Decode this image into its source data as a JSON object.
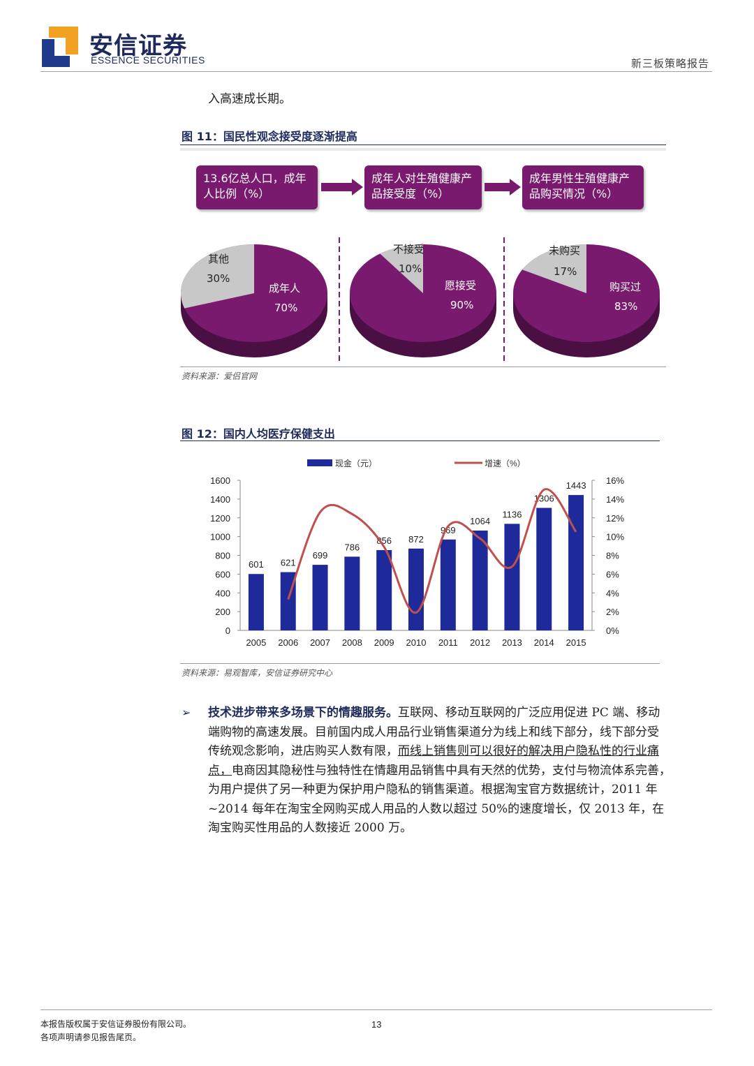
{
  "header": {
    "logo_cn": "安信证券",
    "logo_en": "ESSENCE SECURITIES",
    "report_type": "新三板策略报告"
  },
  "intro_text": "入高速成长期。",
  "figure11": {
    "title": "图 11：国民性观念接受度逐渐提高",
    "boxes": [
      "13.6亿总人口，成年人比例（%）",
      "成年人对生殖健康产品接受度（%）",
      "成年男性生殖健康产品购买情况（%）"
    ],
    "pies": [
      {
        "slices": [
          {
            "label": "成年人",
            "pct": "70%",
            "value": 70
          },
          {
            "label": "其他",
            "pct": "30%",
            "value": 30
          }
        ]
      },
      {
        "slices": [
          {
            "label": "愿接受",
            "pct": "90%",
            "value": 90
          },
          {
            "label": "不接受",
            "pct": "10%",
            "value": 10
          }
        ]
      },
      {
        "slices": [
          {
            "label": "购买过",
            "pct": "83%",
            "value": 83
          },
          {
            "label": "未购买",
            "pct": "17%",
            "value": 17
          }
        ]
      }
    ],
    "colors": {
      "main": "#7a1a6e",
      "other": "#c8c8c8"
    },
    "source": "资料来源：爱侣官网"
  },
  "figure12": {
    "title": "图 12：国内人均医疗保健支出",
    "source": "资料来源：易观智库，安信证券研究中心"
  },
  "chart_data": {
    "type": "bar",
    "categories": [
      "2005",
      "2006",
      "2007",
      "2008",
      "2009",
      "2010",
      "2011",
      "2012",
      "2013",
      "2014",
      "2015"
    ],
    "series": [
      {
        "name": "现金（元）",
        "type": "bar",
        "axis": "left",
        "values": [
          601,
          621,
          699,
          786,
          856,
          872,
          969,
          1064,
          1136,
          1306,
          1443
        ],
        "color": "#1f2a9a"
      },
      {
        "name": "增速（%）",
        "type": "line",
        "axis": "right",
        "values": [
          null,
          3.3,
          12.6,
          12.4,
          8.9,
          1.9,
          11.1,
          9.8,
          6.8,
          15.0,
          10.5
        ],
        "color": "#c0504d"
      }
    ],
    "ylim_left": [
      0,
      1600
    ],
    "yticks_left": [
      "0",
      "200",
      "400",
      "600",
      "800",
      "1000",
      "1200",
      "1400",
      "1600"
    ],
    "ylim_right": [
      0,
      16
    ],
    "yticks_right": [
      "0%",
      "2%",
      "4%",
      "6%",
      "8%",
      "10%",
      "12%",
      "14%",
      "16%"
    ],
    "legend_position": "top",
    "grid": false
  },
  "bullet": {
    "marker": "➢",
    "lead": "技术进步带来多场景下的情趣服务。",
    "lines": [
      "互联网、移动互联网的广泛应用促进 PC 端、移动",
      "端购物的高速发展。目前国内成人用品行业销售渠道分为线上和线下部分，线下部分受",
      "传统观念影响，进店购买人数有限，",
      "而线上销售则可以很好的解决用户隐私性的行业痛",
      "点，",
      "电商因其隐秘性与独特性在情趣用品销售中具有天然的优势，支付与物流体系完善，",
      "为用户提供了另一种更为保护用户隐私的销售渠道。根据淘宝官方数据统计，2011 年",
      "~2014 每年在淘宝全网购买成人用品的人数以超过 50%的速度增长，仅 2013 年，在",
      "淘宝购买性用品的人数接近 2000 万。"
    ]
  },
  "footer": {
    "line1": "本报告版权属于安信证券股份有限公司。",
    "line2": "各项声明请参见报告尾页。",
    "page": "13"
  }
}
